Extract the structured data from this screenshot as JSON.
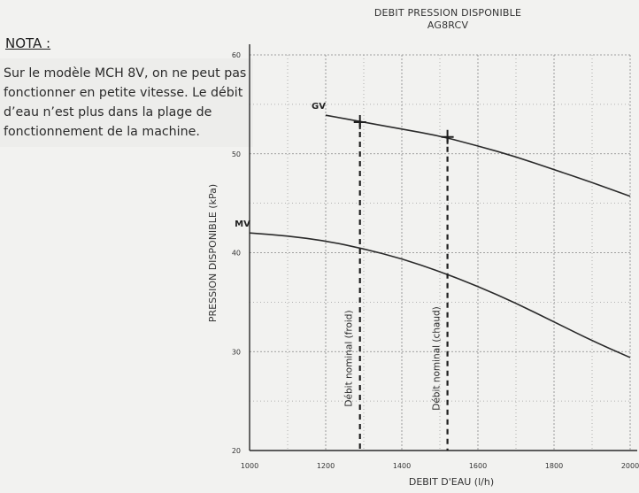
{
  "title_line1": "DEBIT PRESSION DISPONIBLE",
  "title_line2": "AG8RCV",
  "nota": {
    "heading": "NOTA :",
    "text": "Sur le modèle MCH 8V, on ne peut pas fonctionner en petite vitesse. Le débit d’eau n’est plus dans la plage de fonctionnement de la machine."
  },
  "chart_data": {
    "type": "line",
    "title": "DEBIT PRESSION DISPONIBLE AG8RCV",
    "xlabel": "DEBIT D'EAU (l/h)",
    "ylabel": "PRESSION DISPONIBLE (kPa)",
    "xlim": [
      1000,
      2000
    ],
    "ylim": [
      20,
      60
    ],
    "xticks": [
      1000,
      1200,
      1400,
      1600,
      1800,
      2000
    ],
    "yticks": [
      20,
      30,
      40,
      50,
      60
    ],
    "grid": true,
    "series": [
      {
        "name": "GV",
        "x": [
          1200,
          1300,
          1400,
          1500,
          1600,
          1700,
          1800,
          1900,
          2000
        ],
        "y": [
          53.9,
          53.2,
          52.5,
          51.8,
          50.8,
          49.7,
          48.4,
          47.1,
          45.7
        ]
      },
      {
        "name": "MV",
        "x": [
          1000,
          1100,
          1200,
          1300,
          1400,
          1500,
          1600,
          1700,
          1800,
          1900,
          2000
        ],
        "y": [
          42.0,
          41.7,
          41.2,
          40.4,
          39.4,
          38.1,
          36.6,
          34.9,
          33.0,
          31.1,
          29.4
        ]
      }
    ],
    "annotations": [
      {
        "label": "Débit nominal (froid)",
        "x": 1290,
        "y": 53.2
      },
      {
        "label": "Débit nominal (chaud)",
        "x": 1520,
        "y": 51.7
      }
    ],
    "colors": {
      "ink": "#2a2a2a",
      "grid": "#7a7a7a",
      "background": "#f2f2f0"
    }
  }
}
